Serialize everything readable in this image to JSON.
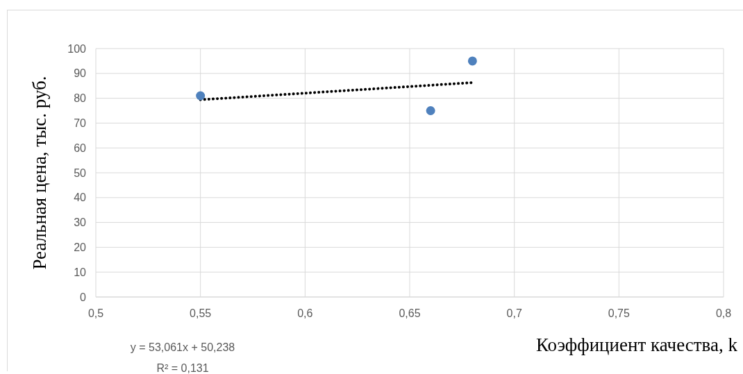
{
  "chart_data": {
    "type": "scatter",
    "xlabel": "Коэффициент качества, k",
    "ylabel": "Реальная цена, тыс. руб.",
    "series": [
      {
        "color": "#4f81bd",
        "x": [
          0.55,
          0.66,
          0.68
        ],
        "values": [
          81,
          75,
          95
        ],
        "marker": "circle"
      },
      {
        "type": "line",
        "color": "#000000",
        "x": [
          0.55,
          0.68
        ],
        "values": [
          79.4,
          86.3
        ],
        "line_style": "dotted",
        "marker": "none"
      }
    ],
    "xlim": [
      0.5,
      0.8
    ],
    "xticks": [
      {
        "value": 0.5,
        "label": "0,5"
      },
      {
        "value": 0.55,
        "label": "0,55"
      },
      {
        "value": 0.6,
        "label": "0,6"
      },
      {
        "value": 0.65,
        "label": "0,65"
      },
      {
        "value": 0.7,
        "label": "0,7"
      },
      {
        "value": 0.75,
        "label": "0,75"
      },
      {
        "value": 0.8,
        "label": "0,8"
      }
    ],
    "ylim": [
      0,
      100
    ],
    "yticks": [
      0,
      10,
      20,
      30,
      40,
      50,
      60,
      70,
      80,
      90,
      100
    ],
    "grid": true,
    "legend": false,
    "annotations": [
      "y = 53,061x + 50,238",
      "R² = 0,131"
    ]
  }
}
